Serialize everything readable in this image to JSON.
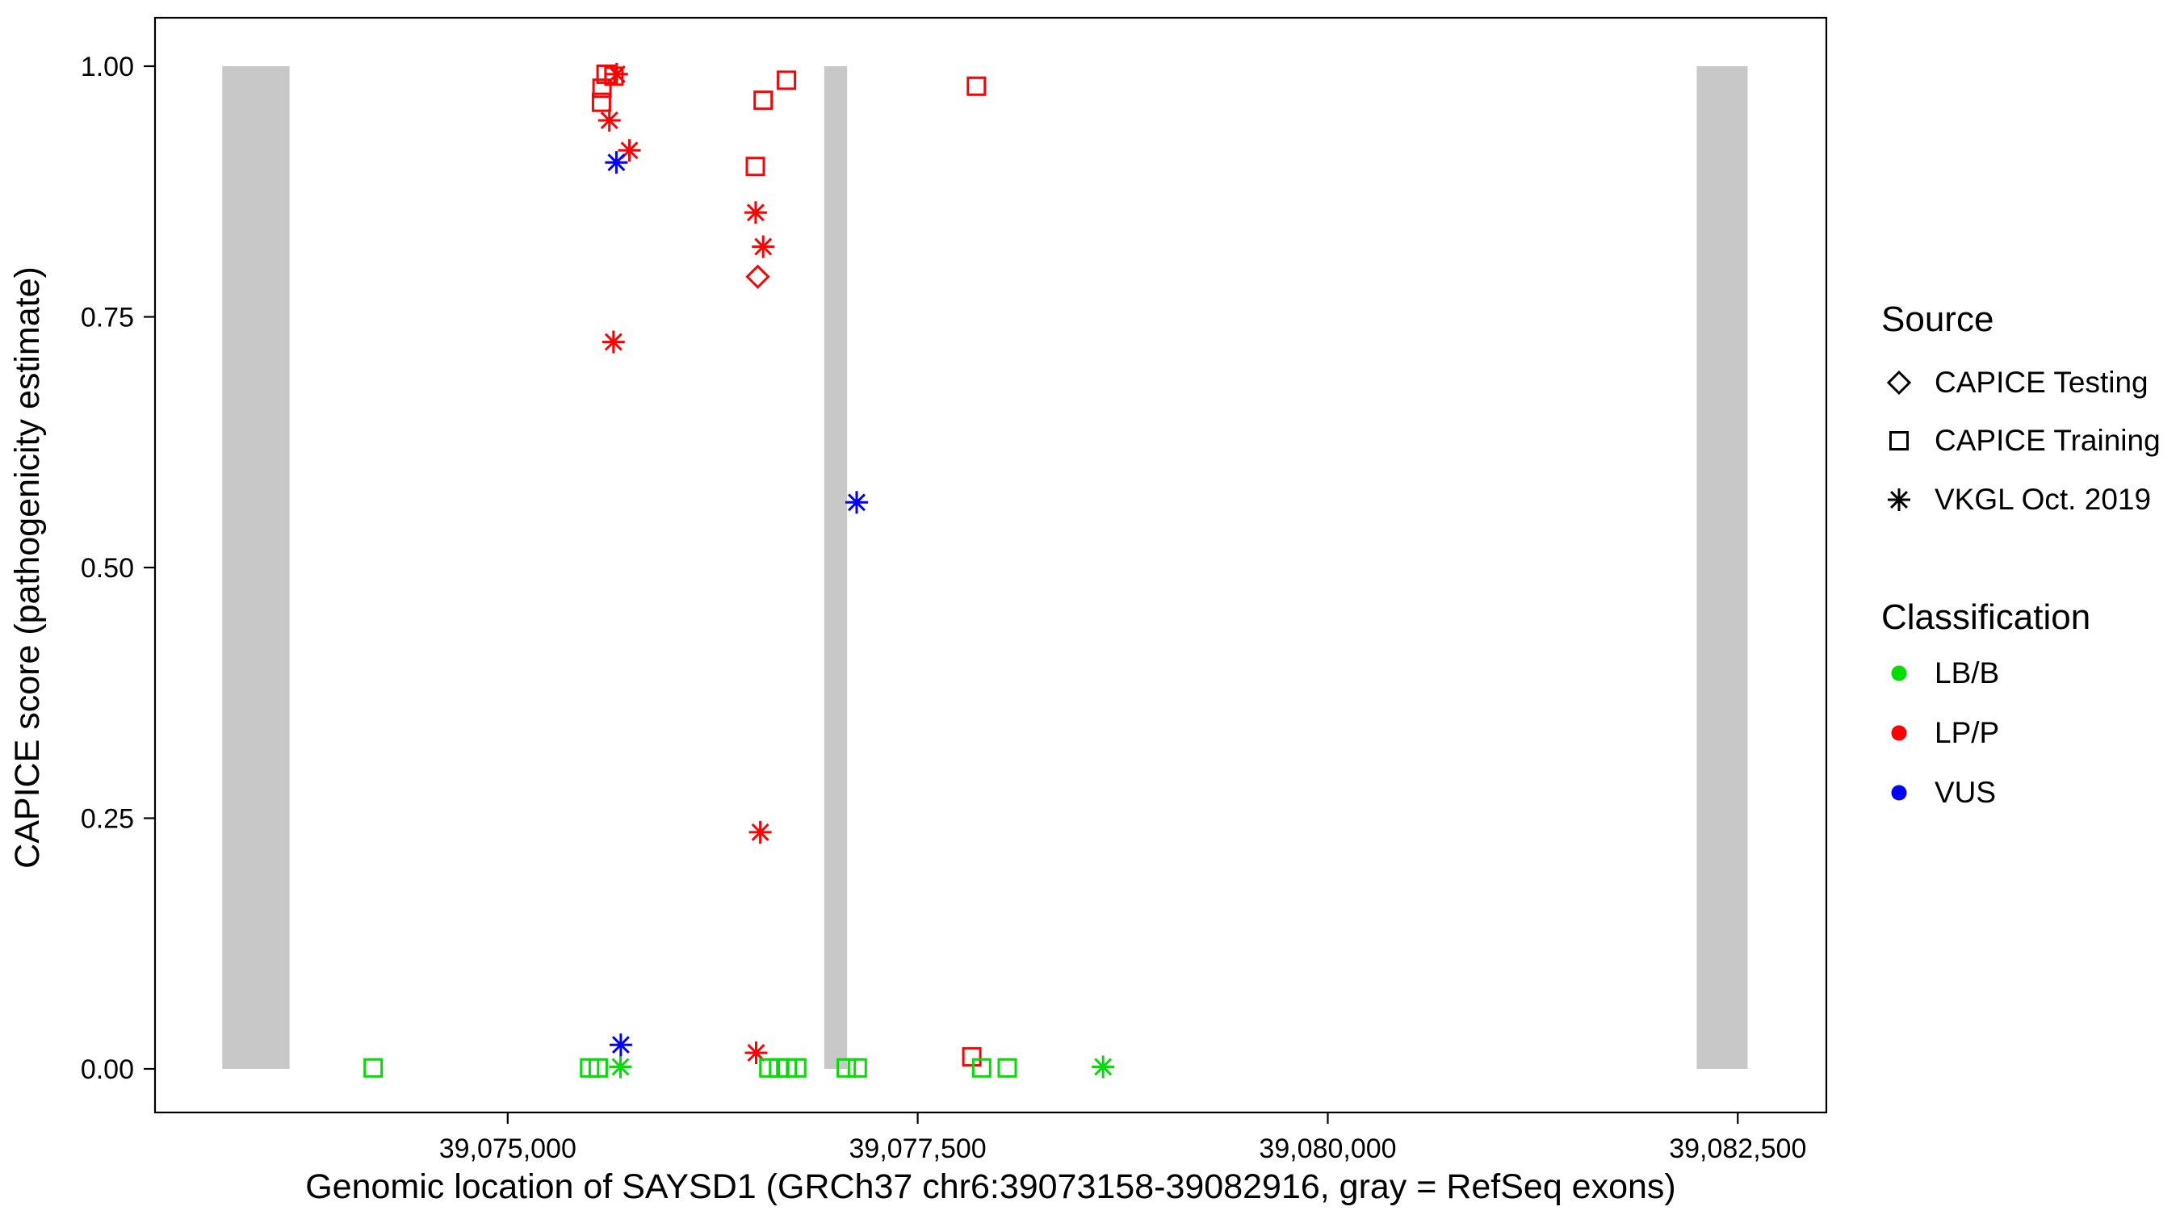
{
  "chart_data": {
    "type": "scatter",
    "title": "",
    "xlabel": "Genomic location of SAYSD1 (GRCh37 chr6:39073158-39082916, gray = RefSeq exons)",
    "ylabel": "CAPICE score (pathogenicity estimate)",
    "xlim": [
      39072850,
      39083040
    ],
    "ylim": [
      0,
      1
    ],
    "grid": false,
    "x_ticks": [
      {
        "value": 39075000,
        "label": "39,075,000"
      },
      {
        "value": 39077500,
        "label": "39,077,500"
      },
      {
        "value": 39080000,
        "label": "39,080,000"
      },
      {
        "value": 39082500,
        "label": "39,082,500"
      }
    ],
    "y_ticks": [
      {
        "value": 0.0,
        "label": "0.00"
      },
      {
        "value": 0.25,
        "label": "0.25"
      },
      {
        "value": 0.5,
        "label": "0.50"
      },
      {
        "value": 0.75,
        "label": "0.75"
      },
      {
        "value": 1.0,
        "label": "1.00"
      }
    ],
    "exon_color": "#c8c8c8",
    "exons": [
      {
        "start": 39073260,
        "end": 39073670
      },
      {
        "start": 39076930,
        "end": 39077070
      },
      {
        "start": 39082250,
        "end": 39082560
      }
    ],
    "source_shapes": {
      "CAPICE Testing": "diamond",
      "CAPICE Training": "square",
      "VKGL Oct. 2019": "asterisk"
    },
    "class_colors": {
      "LB/B": "#00dd00",
      "LP/P": "#ff0000",
      "VUS": "#0000ff"
    },
    "points": [
      {
        "x": 39074180,
        "y": 0.001,
        "source": "CAPICE Training",
        "classification": "LB/B"
      },
      {
        "x": 39075500,
        "y": 0.001,
        "source": "CAPICE Training",
        "classification": "LB/B"
      },
      {
        "x": 39075552,
        "y": 0.001,
        "source": "CAPICE Training",
        "classification": "LB/B"
      },
      {
        "x": 39075688,
        "y": 0.002,
        "source": "VKGL Oct. 2019",
        "classification": "LB/B"
      },
      {
        "x": 39075690,
        "y": 0.024,
        "source": "VKGL Oct. 2019",
        "classification": "VUS"
      },
      {
        "x": 39075600,
        "y": 0.992,
        "source": "CAPICE Training",
        "classification": "LP/P"
      },
      {
        "x": 39075648,
        "y": 0.99,
        "source": "CAPICE Training",
        "classification": "LP/P"
      },
      {
        "x": 39075665,
        "y": 0.992,
        "source": "VKGL Oct. 2019",
        "classification": "LP/P"
      },
      {
        "x": 39075575,
        "y": 0.978,
        "source": "CAPICE Training",
        "classification": "LP/P"
      },
      {
        "x": 39075572,
        "y": 0.964,
        "source": "CAPICE Training",
        "classification": "LP/P"
      },
      {
        "x": 39075620,
        "y": 0.946,
        "source": "VKGL Oct. 2019",
        "classification": "LP/P"
      },
      {
        "x": 39075742,
        "y": 0.916,
        "source": "VKGL Oct. 2019",
        "classification": "LP/P"
      },
      {
        "x": 39075663,
        "y": 0.904,
        "source": "VKGL Oct. 2019",
        "classification": "VUS"
      },
      {
        "x": 39075645,
        "y": 0.725,
        "source": "VKGL Oct. 2019",
        "classification": "LP/P"
      },
      {
        "x": 39076510,
        "y": 0.9,
        "source": "CAPICE Training",
        "classification": "LP/P"
      },
      {
        "x": 39076512,
        "y": 0.854,
        "source": "VKGL Oct. 2019",
        "classification": "LP/P"
      },
      {
        "x": 39076558,
        "y": 0.82,
        "source": "VKGL Oct. 2019",
        "classification": "LP/P"
      },
      {
        "x": 39076525,
        "y": 0.79,
        "source": "CAPICE Testing",
        "classification": "LP/P"
      },
      {
        "x": 39076558,
        "y": 0.966,
        "source": "CAPICE Training",
        "classification": "LP/P"
      },
      {
        "x": 39076700,
        "y": 0.986,
        "source": "CAPICE Training",
        "classification": "LP/P"
      },
      {
        "x": 39076540,
        "y": 0.236,
        "source": "VKGL Oct. 2019",
        "classification": "LP/P"
      },
      {
        "x": 39076515,
        "y": 0.016,
        "source": "VKGL Oct. 2019",
        "classification": "LP/P"
      },
      {
        "x": 39076592,
        "y": 0.001,
        "source": "CAPICE Training",
        "classification": "LB/B"
      },
      {
        "x": 39076652,
        "y": 0.001,
        "source": "CAPICE Training",
        "classification": "LB/B"
      },
      {
        "x": 39076705,
        "y": 0.001,
        "source": "CAPICE Training",
        "classification": "LB/B"
      },
      {
        "x": 39076762,
        "y": 0.001,
        "source": "CAPICE Training",
        "classification": "LB/B"
      },
      {
        "x": 39077065,
        "y": 0.001,
        "source": "CAPICE Training",
        "classification": "LB/B"
      },
      {
        "x": 39077132,
        "y": 0.001,
        "source": "CAPICE Training",
        "classification": "LB/B"
      },
      {
        "x": 39077128,
        "y": 0.565,
        "source": "VKGL Oct. 2019",
        "classification": "VUS"
      },
      {
        "x": 39077858,
        "y": 0.98,
        "source": "CAPICE Training",
        "classification": "LP/P"
      },
      {
        "x": 39077830,
        "y": 0.012,
        "source": "CAPICE Training",
        "classification": "LP/P"
      },
      {
        "x": 39077890,
        "y": 0.001,
        "source": "CAPICE Training",
        "classification": "LB/B"
      },
      {
        "x": 39078046,
        "y": 0.001,
        "source": "CAPICE Training",
        "classification": "LB/B"
      },
      {
        "x": 39078630,
        "y": 0.002,
        "source": "VKGL Oct. 2019",
        "classification": "LB/B"
      }
    ]
  },
  "legend": {
    "source": {
      "title": "Source",
      "items": [
        {
          "label": "CAPICE Testing",
          "shape": "diamond"
        },
        {
          "label": "CAPICE Training",
          "shape": "square"
        },
        {
          "label": "VKGL Oct. 2019",
          "shape": "asterisk"
        }
      ]
    },
    "classification": {
      "title": "Classification",
      "items": [
        {
          "label": "LB/B",
          "color": "#00dd00"
        },
        {
          "label": "LP/P",
          "color": "#ff0000"
        },
        {
          "label": "VUS",
          "color": "#0000ff"
        }
      ]
    }
  }
}
